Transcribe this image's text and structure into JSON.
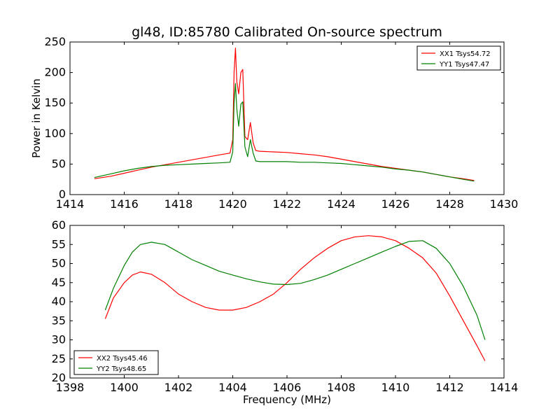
{
  "figure_title": "gl48, ID:85780 Calibrated On-source spectrum",
  "colors": {
    "xx": "#ff0000",
    "yy": "#008000"
  },
  "chart_data": [
    {
      "type": "line",
      "title": "gl48, ID:85780 Calibrated On-source spectrum",
      "xlabel": "",
      "ylabel": "Power in Kelvin",
      "xlim": [
        1414,
        1430
      ],
      "ylim": [
        0,
        250
      ],
      "xticks": [
        1414,
        1416,
        1418,
        1420,
        1422,
        1424,
        1426,
        1428,
        1430
      ],
      "yticks": [
        0,
        50,
        100,
        150,
        200,
        250
      ],
      "grid": false,
      "legend_position": "top-right",
      "series": [
        {
          "name": "XX1 Tsys54.72",
          "color": "#ff0000",
          "x": [
            1414.9,
            1415.5,
            1416,
            1416.5,
            1417,
            1417.5,
            1418,
            1418.5,
            1419,
            1419.5,
            1419.9,
            1420.0,
            1420.05,
            1420.1,
            1420.15,
            1420.22,
            1420.3,
            1420.37,
            1420.45,
            1420.55,
            1420.65,
            1420.75,
            1420.85,
            1421,
            1421.5,
            1422,
            1422.5,
            1423,
            1423.5,
            1424,
            1424.5,
            1425,
            1425.5,
            1426,
            1426.5,
            1427,
            1427.5,
            1428,
            1428.5,
            1428.9
          ],
          "y": [
            26,
            30,
            35,
            40,
            45,
            49,
            53,
            57,
            61,
            65,
            68,
            90,
            200,
            240,
            185,
            165,
            200,
            205,
            95,
            90,
            118,
            85,
            72,
            71,
            70,
            69,
            67,
            65,
            62,
            58,
            54,
            50,
            46,
            43,
            40,
            37,
            33,
            29,
            26,
            23
          ]
        },
        {
          "name": "YY1 Tsys47.47",
          "color": "#008000",
          "x": [
            1414.9,
            1415.5,
            1416,
            1416.5,
            1417,
            1417.5,
            1418,
            1418.5,
            1419,
            1419.5,
            1419.9,
            1420.0,
            1420.05,
            1420.1,
            1420.15,
            1420.22,
            1420.3,
            1420.37,
            1420.45,
            1420.55,
            1420.65,
            1420.75,
            1420.85,
            1421,
            1421.5,
            1422,
            1422.5,
            1423,
            1423.5,
            1424,
            1424.5,
            1425,
            1425.5,
            1426,
            1426.5,
            1427,
            1427.5,
            1428,
            1428.5,
            1428.9
          ],
          "y": [
            28,
            34,
            39,
            43,
            46,
            48,
            49,
            50,
            51,
            52,
            53,
            70,
            150,
            182,
            140,
            112,
            148,
            152,
            78,
            62,
            90,
            68,
            55,
            54,
            54,
            54,
            53,
            53,
            52,
            51,
            49,
            47,
            45,
            42,
            40,
            37,
            33,
            29,
            25,
            22
          ]
        }
      ]
    },
    {
      "type": "line",
      "title": "",
      "xlabel": "Frequency (MHz)",
      "ylabel": "",
      "xlim": [
        1398,
        1414
      ],
      "ylim": [
        20,
        60
      ],
      "xticks": [
        1398,
        1400,
        1402,
        1404,
        1406,
        1408,
        1410,
        1412,
        1414
      ],
      "yticks": [
        20,
        25,
        30,
        35,
        40,
        45,
        50,
        55,
        60
      ],
      "grid": false,
      "legend_position": "bottom-left",
      "series": [
        {
          "name": "XX2 Tsys45.46",
          "color": "#ff0000",
          "x": [
            1399.3,
            1399.6,
            1400.0,
            1400.3,
            1400.6,
            1401.0,
            1401.5,
            1402.0,
            1402.5,
            1403.0,
            1403.5,
            1404.0,
            1404.5,
            1405.0,
            1405.5,
            1406.0,
            1406.5,
            1407.0,
            1407.5,
            1408.0,
            1408.5,
            1409.0,
            1409.5,
            1410.0,
            1410.5,
            1411.0,
            1411.5,
            1412.0,
            1412.5,
            1413.0,
            1413.3
          ],
          "y": [
            35.5,
            41.0,
            45.0,
            47.0,
            47.8,
            47.2,
            45.0,
            42.0,
            40.0,
            38.5,
            37.8,
            37.8,
            38.5,
            40.0,
            42.0,
            45.0,
            48.5,
            51.5,
            54.0,
            56.0,
            57.0,
            57.3,
            57.0,
            56.0,
            54.0,
            51.5,
            47.5,
            41.5,
            35.0,
            28.5,
            24.5
          ]
        },
        {
          "name": "YY2 Tsys48.65",
          "color": "#008000",
          "x": [
            1399.3,
            1399.6,
            1400.0,
            1400.3,
            1400.6,
            1401.0,
            1401.5,
            1402.0,
            1402.5,
            1403.0,
            1403.5,
            1404.0,
            1404.5,
            1405.0,
            1405.5,
            1406.0,
            1406.5,
            1407.0,
            1407.5,
            1408.0,
            1408.5,
            1409.0,
            1409.5,
            1410.0,
            1410.5,
            1411.0,
            1411.5,
            1412.0,
            1412.5,
            1413.0,
            1413.3
          ],
          "y": [
            37.8,
            43.5,
            49.5,
            53.0,
            55.0,
            55.6,
            55.0,
            53.0,
            51.0,
            49.5,
            48.0,
            47.0,
            46.0,
            45.2,
            44.6,
            44.5,
            44.8,
            45.8,
            47.0,
            48.5,
            50.0,
            51.5,
            53.0,
            54.5,
            55.8,
            56.0,
            54.0,
            50.0,
            44.0,
            36.5,
            30.0
          ]
        }
      ]
    }
  ]
}
